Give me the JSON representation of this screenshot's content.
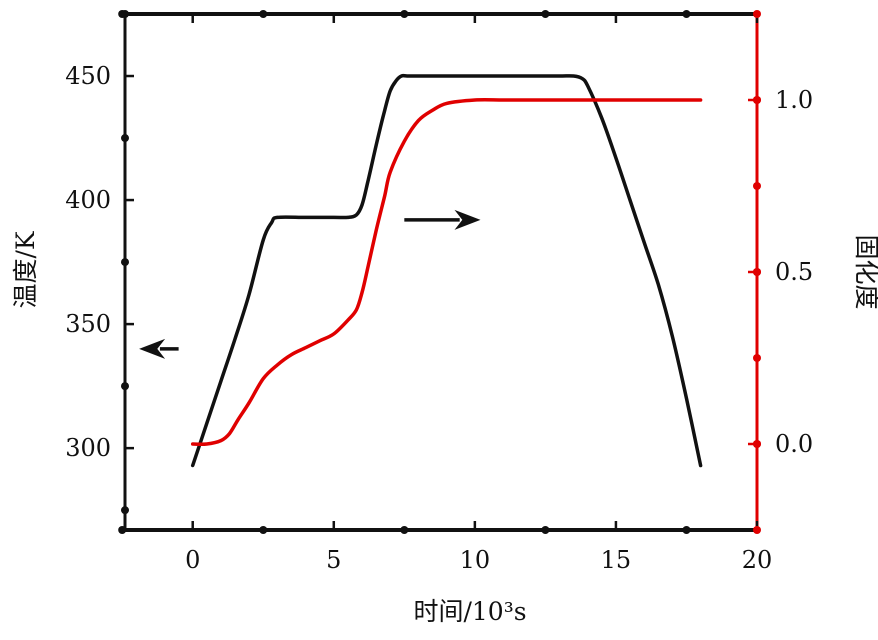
{
  "chart_data": {
    "type": "line",
    "title": "",
    "xlabel": "时间/10³s",
    "ylabel_left": "温度/K",
    "ylabel_right": "固化度",
    "xlim": [
      -2.4,
      20
    ],
    "ylim_left": [
      267,
      475
    ],
    "ylim_right": [
      -0.25,
      1.25
    ],
    "x_ticks": [
      0,
      5,
      10,
      15,
      20
    ],
    "y_left_ticks": [
      300,
      350,
      400,
      450
    ],
    "y_right_ticks": [
      0.0,
      0.5,
      1.0
    ],
    "x_tick_labels": [
      "0",
      "5",
      "10",
      "15",
      "20"
    ],
    "y_left_tick_labels": [
      "300",
      "350",
      "400",
      "450"
    ],
    "y_right_tick_labels": [
      "0.0",
      "0.5",
      "1.0"
    ],
    "grid": false,
    "colors": {
      "temperature": "#111111",
      "cure": "#e00000",
      "right_axis": "#e00000"
    },
    "series": [
      {
        "axis": "left",
        "color": "#111111",
        "x": [
          0,
          0.5,
          1,
          1.5,
          2,
          2.5,
          2.8,
          3,
          4,
          5,
          5.5,
          5.8,
          6,
          6.2,
          6.5,
          6.8,
          7,
          7.2,
          7.4,
          7.6,
          8,
          9,
          10,
          11,
          12,
          13,
          13.5,
          13.8,
          14,
          14.5,
          15,
          15.5,
          16,
          16.5,
          17,
          17.5,
          18
        ],
        "y": [
          293,
          310,
          327,
          344,
          362,
          384,
          391,
          393,
          393,
          393,
          393,
          394,
          398,
          407,
          422,
          436,
          444,
          448,
          450,
          450,
          450,
          450,
          450,
          450,
          450,
          450,
          450,
          449,
          446,
          433,
          417,
          400,
          383,
          366,
          345,
          320,
          293
        ]
      },
      {
        "axis": "right",
        "color": "#e00000",
        "x": [
          0,
          0.5,
          1,
          1.3,
          1.6,
          2,
          2.5,
          3,
          3.5,
          4,
          4.5,
          5,
          5.5,
          5.8,
          6,
          6.2,
          6.5,
          6.8,
          7,
          7.5,
          8,
          8.5,
          9,
          10,
          11,
          12,
          13,
          14,
          15,
          16,
          17,
          18
        ],
        "y": [
          0.0,
          0.0,
          0.01,
          0.03,
          0.07,
          0.12,
          0.19,
          0.23,
          0.26,
          0.28,
          0.3,
          0.32,
          0.36,
          0.39,
          0.44,
          0.51,
          0.62,
          0.72,
          0.79,
          0.88,
          0.94,
          0.97,
          0.99,
          1.0,
          1.0,
          1.0,
          1.0,
          1.0,
          1.0,
          1.0,
          1.0,
          1.0
        ]
      }
    ],
    "annotations": [
      {
        "type": "arrow",
        "direction": "left",
        "points_to": "left-axis",
        "x_from": -0.5,
        "x_to": -1.9,
        "y_left": 340
      },
      {
        "type": "arrow",
        "direction": "right",
        "points_to": "right-axis",
        "x_from": 7.5,
        "x_to": 10.2,
        "y_left": 392
      }
    ]
  }
}
